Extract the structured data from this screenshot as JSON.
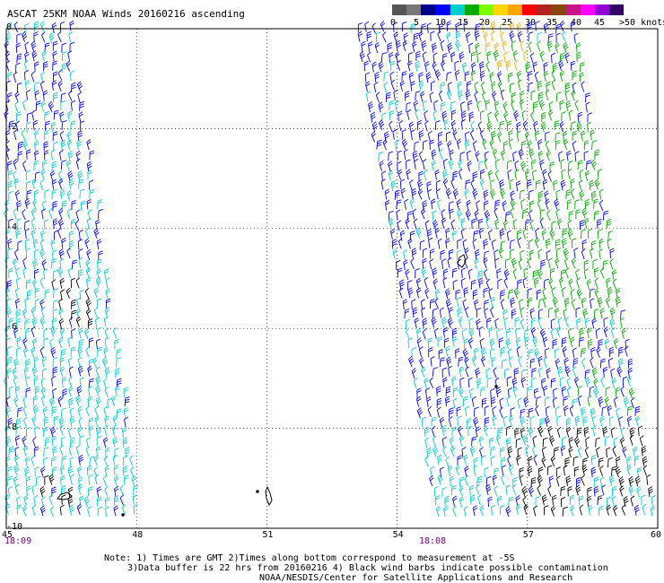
{
  "title": "ASCAT 25KM NOAA Winds 20160216 ascending",
  "colorbar": {
    "colors": [
      "#555555",
      "#777777",
      "#00008b",
      "#0000ff",
      "#00ced1",
      "#00aa00",
      "#7cfc00",
      "#ffd700",
      "#ffa500",
      "#ff0000",
      "#b22222",
      "#8b4513",
      "#c71585",
      "#ff00ff",
      "#9400d3",
      "#330066"
    ],
    "labels": [
      "0",
      "5",
      "10",
      "15",
      "20",
      "25",
      "30",
      "35",
      "40",
      "45"
    ],
    "last_label": ">50 knots"
  },
  "axes": {
    "x_ticks": [
      "45",
      "48",
      "51",
      "54",
      "57",
      "60"
    ],
    "y_ticks": [
      "0",
      "-2",
      "-4",
      "-6",
      "-8",
      "-10"
    ],
    "xlim": [
      45,
      60
    ],
    "ylim": [
      -10,
      0
    ]
  },
  "swath_times": [
    "18:09",
    "18:08"
  ],
  "footer": {
    "line1": "Note: 1) Times are GMT 2)Times along bottom correspond to measurement at -5S",
    "line2": "3)Data buffer is 22 hrs from 20160216 4) Black wind barbs indicate possible contamination",
    "line3": "NOAA/NESDIS/Center for Satellite Applications and Research"
  },
  "map": {
    "grid": "dotted",
    "barb_colors": {
      "light": "#00ced1",
      "moderate": "#0000ff",
      "strong": "#00aa00",
      "fresh": "#ffa500",
      "contaminated": "#000000"
    }
  }
}
